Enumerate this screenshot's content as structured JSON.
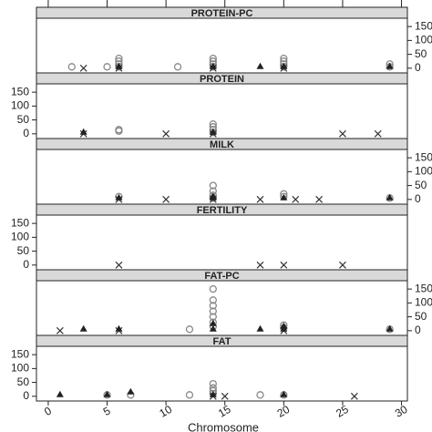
{
  "chart_data": {
    "type": "scatter",
    "xlabel": "Chromosome",
    "xlim": [
      -1,
      30.5
    ],
    "xticks": [
      0,
      5,
      10,
      15,
      20,
      25,
      30
    ],
    "ylim": [
      -17,
      180
    ],
    "yticks": [
      0,
      50,
      100,
      150
    ],
    "panels": [
      {
        "title": "PROTEIN-PC",
        "y_side": "right",
        "series": [
          {
            "marker": "circle",
            "color": "#888888",
            "x": [
              2,
              5,
              6,
              6,
              6,
              6,
              11,
              14,
              14,
              14,
              14,
              20,
              20,
              20,
              20,
              29,
              29
            ],
            "values": [
              5,
              5,
              5,
              15,
              25,
              35,
              5,
              5,
              15,
              25,
              35,
              5,
              15,
              25,
              35,
              5,
              15
            ]
          },
          {
            "marker": "cross",
            "color": "#333333",
            "x": [
              3,
              6,
              14,
              20
            ],
            "values": [
              0,
              0,
              0,
              0
            ]
          },
          {
            "marker": "triangle",
            "color": "#222222",
            "x": [
              6,
              14,
              18,
              20,
              29
            ],
            "values": [
              5,
              5,
              5,
              5,
              5
            ]
          }
        ]
      },
      {
        "title": "PROTEIN",
        "y_side": "left",
        "series": [
          {
            "marker": "circle",
            "color": "#888888",
            "x": [
              6,
              6,
              14,
              14,
              14,
              14
            ],
            "values": [
              10,
              15,
              5,
              15,
              25,
              35
            ]
          },
          {
            "marker": "cross",
            "color": "#333333",
            "x": [
              3,
              10,
              14,
              25,
              28
            ],
            "values": [
              0,
              0,
              0,
              0,
              0
            ]
          },
          {
            "marker": "triangle",
            "color": "#222222",
            "x": [
              3,
              14
            ],
            "values": [
              5,
              5
            ]
          }
        ]
      },
      {
        "title": "MILK",
        "y_side": "right",
        "series": [
          {
            "marker": "circle",
            "color": "#888888",
            "x": [
              6,
              14,
              14,
              14,
              14,
              20,
              20,
              29
            ],
            "values": [
              10,
              5,
              15,
              30,
              50,
              10,
              20,
              5
            ]
          },
          {
            "marker": "cross",
            "color": "#333333",
            "x": [
              6,
              10,
              14,
              18,
              21,
              23
            ],
            "values": [
              0,
              0,
              0,
              0,
              0,
              0
            ]
          },
          {
            "marker": "triangle",
            "color": "#222222",
            "x": [
              6,
              14,
              14,
              20,
              29
            ],
            "values": [
              5,
              5,
              10,
              5,
              5
            ]
          }
        ]
      },
      {
        "title": "FERTILITY",
        "y_side": "left",
        "series": [
          {
            "marker": "cross",
            "color": "#333333",
            "x": [
              6,
              18,
              20,
              25
            ],
            "values": [
              0,
              0,
              0,
              0
            ]
          }
        ]
      },
      {
        "title": "FAT-PC",
        "y_side": "right",
        "series": [
          {
            "marker": "circle",
            "color": "#888888",
            "x": [
              12,
              14,
              14,
              14,
              14,
              14,
              14,
              14,
              20,
              20,
              29
            ],
            "values": [
              5,
              15,
              30,
              50,
              70,
              90,
              110,
              150,
              10,
              20,
              5
            ]
          },
          {
            "marker": "cross",
            "color": "#333333",
            "x": [
              1,
              6,
              20
            ],
            "values": [
              0,
              0,
              0
            ]
          },
          {
            "marker": "triangle",
            "color": "#222222",
            "x": [
              3,
              6,
              14,
              14,
              18,
              20,
              20,
              29
            ],
            "values": [
              5,
              5,
              5,
              25,
              5,
              5,
              15,
              5
            ]
          }
        ]
      },
      {
        "title": "FAT",
        "y_side": "left",
        "series": [
          {
            "marker": "circle",
            "color": "#888888",
            "x": [
              5,
              7,
              12,
              14,
              14,
              14,
              14,
              18,
              20
            ],
            "values": [
              5,
              5,
              5,
              10,
              20,
              30,
              45,
              5,
              5
            ]
          },
          {
            "marker": "cross",
            "color": "#333333",
            "x": [
              14,
              15,
              26
            ],
            "values": [
              0,
              0,
              0
            ]
          },
          {
            "marker": "triangle",
            "color": "#222222",
            "x": [
              1,
              5,
              7,
              14,
              20
            ],
            "values": [
              5,
              5,
              15,
              5,
              5
            ]
          }
        ]
      }
    ]
  }
}
